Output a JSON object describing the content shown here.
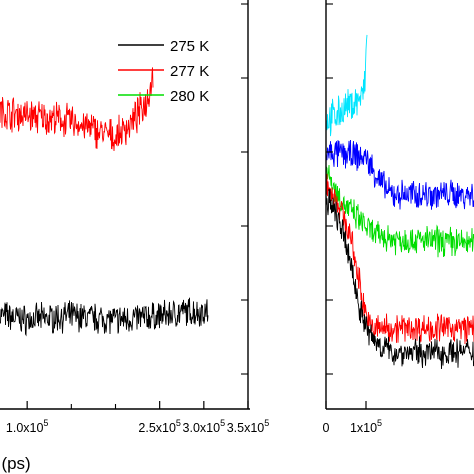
{
  "chart_data": [
    {
      "type": "line",
      "xlabel": "t (ps)",
      "xlim": [
        50000,
        350000
      ],
      "ylim": [
        0,
        1
      ],
      "tick_labels": [
        "1.0x10",
        "2.5x10",
        "3.0x10",
        "3.5x10"
      ],
      "tick_label_values": [
        100000,
        250000,
        300000,
        350000
      ],
      "tick_exponent": "5",
      "minor_tick_values": [
        150000,
        200000
      ],
      "legend_placement": "top-right",
      "series": [
        {
          "name": "275 K",
          "color": "#000000",
          "end_x": 305000,
          "noise": 0.03,
          "points": [
            [
              50000,
              0.23
            ],
            [
              100000,
              0.21
            ],
            [
              150000,
              0.22
            ],
            [
              200000,
              0.21
            ],
            [
              250000,
              0.22
            ],
            [
              280000,
              0.23
            ],
            [
              305000,
              0.23
            ]
          ]
        },
        {
          "name": "277 K",
          "color": "#ff0000",
          "end_x": 243000,
          "noise": 0.035,
          "points": [
            [
              50000,
              0.73
            ],
            [
              150000,
              0.7
            ],
            [
              200000,
              0.66
            ],
            [
              220000,
              0.7
            ],
            [
              235000,
              0.75
            ],
            [
              243000,
              0.82
            ]
          ]
        },
        {
          "name": "280 K",
          "color": "#00dd00",
          "end_x": 0,
          "noise": 0,
          "points": []
        }
      ]
    },
    {
      "type": "line",
      "xlim": [
        0,
        370000
      ],
      "ylim": [
        0,
        1
      ],
      "tick_labels": [
        "0",
        "1x10"
      ],
      "tick_label_values": [
        0,
        100000
      ],
      "tick_exponent": "5",
      "series": [
        {
          "color": "#00e5ff",
          "end_x": 103000,
          "noise": 0.035,
          "points": [
            [
              0,
              0.7
            ],
            [
              30000,
              0.72
            ],
            [
              60000,
              0.74
            ],
            [
              90000,
              0.76
            ],
            [
              97000,
              0.79
            ],
            [
              100000,
              0.86
            ],
            [
              103000,
              0.92
            ]
          ]
        },
        {
          "color": "#0000ff",
          "end_x": 370000,
          "noise": 0.03,
          "points": [
            [
              0,
              0.62
            ],
            [
              40000,
              0.62
            ],
            [
              100000,
              0.61
            ],
            [
              130000,
              0.56
            ],
            [
              160000,
              0.52
            ],
            [
              370000,
              0.52
            ]
          ]
        },
        {
          "color": "#00dd00",
          "end_x": 370000,
          "noise": 0.03,
          "points": [
            [
              0,
              0.58
            ],
            [
              40000,
              0.5
            ],
            [
              80000,
              0.46
            ],
            [
              120000,
              0.42
            ],
            [
              170000,
              0.41
            ],
            [
              370000,
              0.4
            ]
          ]
        },
        {
          "color": "#ff0000",
          "end_x": 370000,
          "noise": 0.03,
          "points": [
            [
              0,
              0.55
            ],
            [
              30000,
              0.5
            ],
            [
              60000,
              0.42
            ],
            [
              90000,
              0.27
            ],
            [
              110000,
              0.19
            ],
            [
              140000,
              0.19
            ],
            [
              370000,
              0.19
            ]
          ]
        },
        {
          "color": "#000000",
          "end_x": 370000,
          "noise": 0.03,
          "points": [
            [
              0,
              0.51
            ],
            [
              30000,
              0.46
            ],
            [
              60000,
              0.36
            ],
            [
              75000,
              0.28
            ],
            [
              90000,
              0.22
            ],
            [
              110000,
              0.17
            ],
            [
              160000,
              0.13
            ],
            [
              370000,
              0.13
            ]
          ]
        }
      ]
    }
  ]
}
